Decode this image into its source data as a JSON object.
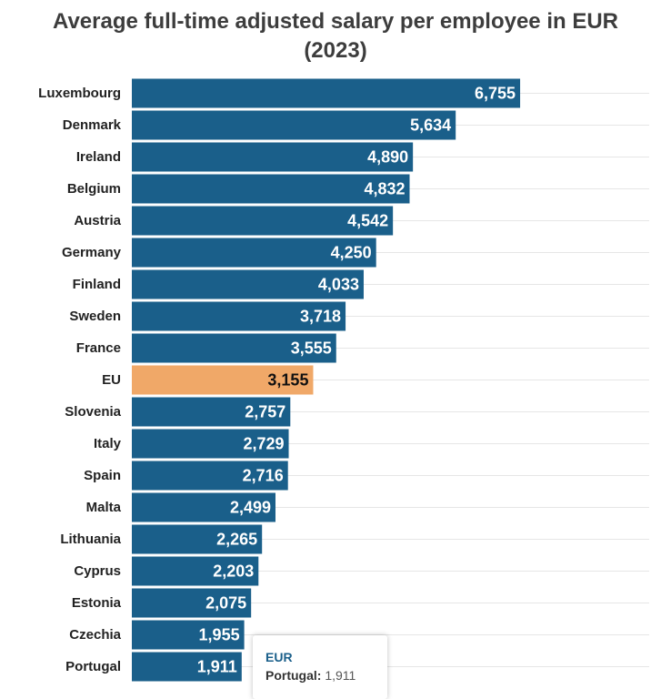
{
  "chart_data": {
    "type": "bar",
    "orientation": "horizontal",
    "title": "Average full-time adjusted salary per employee in EUR",
    "title_year": "(2023)",
    "series_name": "EUR",
    "categories": [
      "Luxembourg",
      "Denmark",
      "Ireland",
      "Belgium",
      "Austria",
      "Germany",
      "Finland",
      "Sweden",
      "France",
      "EU",
      "Slovenia",
      "Italy",
      "Spain",
      "Malta",
      "Lithuania",
      "Cyprus",
      "Estonia",
      "Czechia",
      "Portugal"
    ],
    "values": [
      6755,
      5634,
      4890,
      4832,
      4542,
      4250,
      4033,
      3718,
      3555,
      3155,
      2757,
      2729,
      2716,
      2499,
      2265,
      2203,
      2075,
      1955,
      1911
    ],
    "value_labels": [
      "6,755",
      "5,634",
      "4,890",
      "4,832",
      "4,542",
      "4,250",
      "4,033",
      "3,718",
      "3,555",
      "3,155",
      "2,757",
      "2,729",
      "2,716",
      "2,499",
      "2,265",
      "2,203",
      "2,075",
      "1,955",
      "1,911"
    ],
    "highlight_category": "EU",
    "xlim": [
      0,
      9000
    ],
    "grid": true,
    "colors": {
      "bar": "#1a5f8a",
      "highlight": "#f0a868",
      "label_on_bar": "#ffffff",
      "label_on_highlight": "#111111",
      "grid": "#e6e6e6"
    }
  },
  "tooltip": {
    "series": "EUR",
    "category": "Portugal:",
    "value": "1,911"
  }
}
